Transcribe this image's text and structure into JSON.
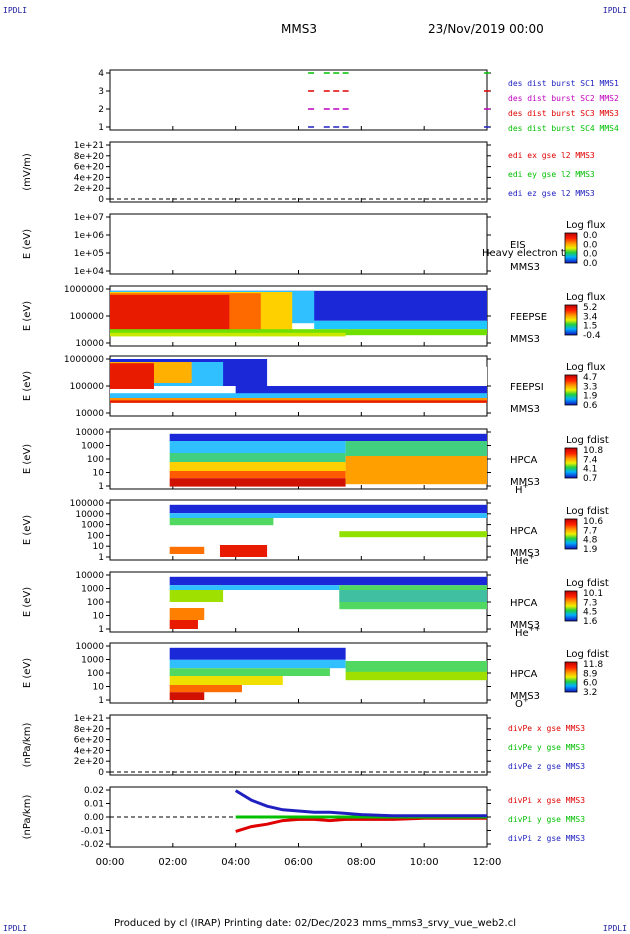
{
  "header": {
    "corner_label": "IPDLI",
    "spacecraft": "MMS3",
    "datetime": "23/Nov/2019 00:00"
  },
  "footer": {
    "text": "Produced by cl (IRAP)   Printing date: 02/Dec/2023   mms_mms3_srvy_vue_web2.cl"
  },
  "chart_data": [
    {
      "type": "line",
      "name": "burst-flags",
      "ylabel": "",
      "yticks": [
        "4",
        "3",
        "2",
        "1"
      ],
      "ylim": [
        0.5,
        4.5
      ],
      "series": [
        {
          "name": "des dist burst SC1 MMS1",
          "color": "#2020c0",
          "y": 1,
          "x_hours": [
            6.4,
            6.9,
            7.2,
            7.5,
            12.0
          ]
        },
        {
          "name": "des dist burst SC2 MMS2",
          "color": "#c000c0",
          "y": 2,
          "x_hours": [
            6.4,
            6.9,
            7.2,
            7.5,
            12.0
          ]
        },
        {
          "name": "des dist burst SC3 MMS3",
          "color": "#e00000",
          "y": 3,
          "x_hours": [
            6.4,
            6.9,
            7.2,
            7.5,
            12.0
          ]
        },
        {
          "name": "des dist burst SC4 MMS4",
          "color": "#00c000",
          "y": 4,
          "x_hours": [
            6.4,
            6.9,
            7.2,
            7.5,
            12.0
          ]
        }
      ]
    },
    {
      "type": "line",
      "name": "edi-e",
      "ylabel": "(mV/m)",
      "yticks": [
        "1e+21",
        "8e+20",
        "6e+20",
        "4e+20",
        "2e+20",
        "0"
      ],
      "legend": [
        {
          "name": "edi ex gse l2 MMS3",
          "color": "#e00000"
        },
        {
          "name": "edi ey gse l2 MMS3",
          "color": "#00c000"
        },
        {
          "name": "edi ez gse l2 MMS3",
          "color": "#2020c0"
        }
      ]
    },
    {
      "type": "heatmap",
      "name": "eis",
      "ylabel": "E (eV)",
      "yticks": [
        "1e+07",
        "1e+06",
        "1e+05",
        "1e+04"
      ],
      "instrument": [
        "EIS",
        "MMS3"
      ],
      "overlay_text": "Heavy electron to",
      "colorbar": {
        "title": "Log flux",
        "ticks": [
          "0.0",
          "0.0",
          "0.0",
          "0.0"
        ]
      }
    },
    {
      "type": "heatmap",
      "name": "feeps-e",
      "ylabel": "E (eV)",
      "yticks": [
        "1000000",
        "100000",
        "10000"
      ],
      "instrument": [
        "FEEPSE",
        "MMS3"
      ],
      "colorbar": {
        "title": "Log flux",
        "ticks": [
          "5.2",
          "3.4",
          "1.5",
          "-0.4"
        ]
      }
    },
    {
      "type": "heatmap",
      "name": "feeps-i",
      "ylabel": "E (eV)",
      "yticks": [
        "1000000",
        "100000",
        "10000"
      ],
      "instrument": [
        "FEEPSI",
        "MMS3"
      ],
      "colorbar": {
        "title": "Log flux",
        "ticks": [
          "4.7",
          "3.3",
          "1.9",
          "0.6"
        ]
      }
    },
    {
      "type": "heatmap",
      "name": "hpca-h",
      "ylabel": "E (eV)",
      "yticks": [
        "10000",
        "1000",
        "100",
        "10",
        "1"
      ],
      "instrument": [
        "HPCA",
        "MMS3"
      ],
      "species": "H",
      "species_sup": "+",
      "colorbar": {
        "title": "Log fdist",
        "ticks": [
          "10.8",
          "7.4",
          "4.1",
          "0.7"
        ]
      }
    },
    {
      "type": "heatmap",
      "name": "hpca-he",
      "ylabel": "E (eV)",
      "yticks": [
        "100000",
        "10000",
        "1000",
        "100",
        "10",
        "1"
      ],
      "instrument": [
        "HPCA",
        "MMS3"
      ],
      "species": "He",
      "species_sup": "+",
      "colorbar": {
        "title": "Log fdist",
        "ticks": [
          "10.6",
          "7.7",
          "4.8",
          "1.9"
        ]
      }
    },
    {
      "type": "heatmap",
      "name": "hpca-he2",
      "ylabel": "E (eV)",
      "yticks": [
        "10000",
        "1000",
        "100",
        "10",
        "1"
      ],
      "instrument": [
        "HPCA",
        "MMS3"
      ],
      "species": "He",
      "species_sup": "++",
      "colorbar": {
        "title": "Log fdist",
        "ticks": [
          "10.1",
          "7.3",
          "4.5",
          "1.6"
        ]
      }
    },
    {
      "type": "heatmap",
      "name": "hpca-o",
      "ylabel": "E (eV)",
      "yticks": [
        "10000",
        "1000",
        "100",
        "10",
        "1"
      ],
      "instrument": [
        "HPCA",
        "MMS3"
      ],
      "species": "O",
      "species_sup": "+",
      "colorbar": {
        "title": "Log fdist",
        "ticks": [
          "11.8",
          "8.9",
          "6.0",
          "3.2"
        ]
      }
    },
    {
      "type": "line",
      "name": "divpe",
      "ylabel": "(nPa/km)",
      "yticks": [
        "1e+21",
        "8e+20",
        "6e+20",
        "4e+20",
        "2e+20",
        "0"
      ],
      "legend": [
        {
          "name": "divPe x gse MMS3",
          "color": "#e00000"
        },
        {
          "name": "divPe y gse MMS3",
          "color": "#00c000"
        },
        {
          "name": "divPe z gse MMS3",
          "color": "#2020c0"
        }
      ]
    },
    {
      "type": "line",
      "name": "divpi",
      "ylabel": "(nPa/km)",
      "yticks": [
        "0.02",
        "0.01",
        "0.00",
        "-0.01",
        "-0.02"
      ],
      "ylim": [
        -0.025,
        0.025
      ],
      "legend": [
        {
          "name": "divPi x gse MMS3",
          "color": "#e00000"
        },
        {
          "name": "divPi y gse MMS3",
          "color": "#00c000"
        },
        {
          "name": "divPi z gse MMS3",
          "color": "#2020c0"
        }
      ],
      "series": [
        {
          "name": "divPi x gse MMS3",
          "color": "#e00000",
          "x_hours": [
            4.0,
            4.5,
            5.0,
            5.5,
            6.0,
            6.5,
            7.0,
            7.5,
            8.0,
            9.0,
            10.0,
            11.0,
            12.0
          ],
          "y": [
            -0.012,
            -0.008,
            -0.006,
            -0.003,
            -0.002,
            -0.002,
            -0.003,
            -0.002,
            -0.002,
            -0.002,
            -0.001,
            -0.001,
            -0.001
          ]
        },
        {
          "name": "divPi y gse MMS3",
          "color": "#00c000",
          "x_hours": [
            4.0,
            4.5,
            5.0,
            5.5,
            6.0,
            6.5,
            7.0,
            7.5,
            8.0,
            9.0,
            10.0,
            11.0,
            12.0
          ],
          "y": [
            0.0,
            0.0,
            0.0,
            0.0,
            0.0,
            0.0,
            0.0,
            0.0,
            0.0,
            0.0,
            0.0,
            0.0,
            0.0
          ]
        },
        {
          "name": "divPi z gse MMS3",
          "color": "#2020c0",
          "x_hours": [
            4.0,
            4.5,
            5.0,
            5.5,
            6.0,
            6.5,
            7.0,
            7.5,
            8.0,
            9.0,
            10.0,
            11.0,
            12.0
          ],
          "y": [
            0.022,
            0.014,
            0.009,
            0.006,
            0.005,
            0.004,
            0.004,
            0.003,
            0.002,
            0.001,
            0.001,
            0.001,
            0.001
          ]
        }
      ]
    }
  ],
  "time_axis": {
    "xlim_hours": [
      0,
      12
    ],
    "ticks": [
      "00:00",
      "02:00",
      "04:00",
      "06:00",
      "08:00",
      "10:00",
      "12:00"
    ]
  }
}
